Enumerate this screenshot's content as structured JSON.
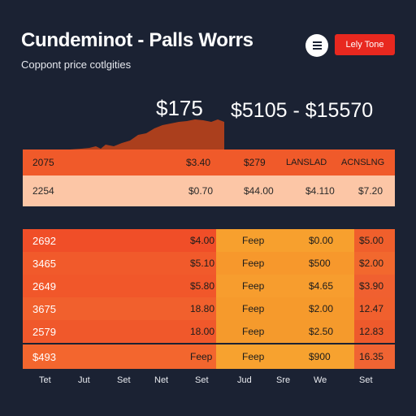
{
  "header": {
    "title": "Cundeminot - Palls Worrs",
    "subtitle": "Coppont price cotlgities",
    "menu_icon": "menu-icon",
    "action_label": "Lely Tone"
  },
  "summary": {
    "price": "$175",
    "range": "$5105 - $15570"
  },
  "colors": {
    "background": "#1b2233",
    "header_row": "#f05a2a",
    "sub_row": "#fcc6a6",
    "accent": "#e8281f",
    "amber": "#f59a2a"
  },
  "table": {
    "header": [
      "2075",
      "$3.40",
      "$279",
      "LANSLAD",
      "ACNSLNG"
    ],
    "subheader": [
      "2254",
      "$0.70",
      "$44.00",
      "$4.110",
      "$7.20"
    ],
    "rows": [
      [
        "2692",
        "$4.00",
        "Feep",
        "$0.00",
        "$5.00"
      ],
      [
        "3465",
        "$5.10",
        "Feep",
        "$500",
        "$2.00"
      ],
      [
        "2649",
        "$5.80",
        "Feep",
        "$4.65",
        "$3.90"
      ],
      [
        "3675",
        "18.80",
        "Feep",
        "$2.00",
        "12.47"
      ],
      [
        "2579",
        "18.00",
        "Feep",
        "$2.50",
        "12.83"
      ],
      [
        "$493",
        "Feep",
        "Feep",
        "$900",
        "16.35"
      ]
    ]
  },
  "xaxis": [
    "Tet",
    "Jut",
    "Set",
    "Net",
    "Set",
    "Jud",
    "Sre",
    "We",
    "Set"
  ]
}
